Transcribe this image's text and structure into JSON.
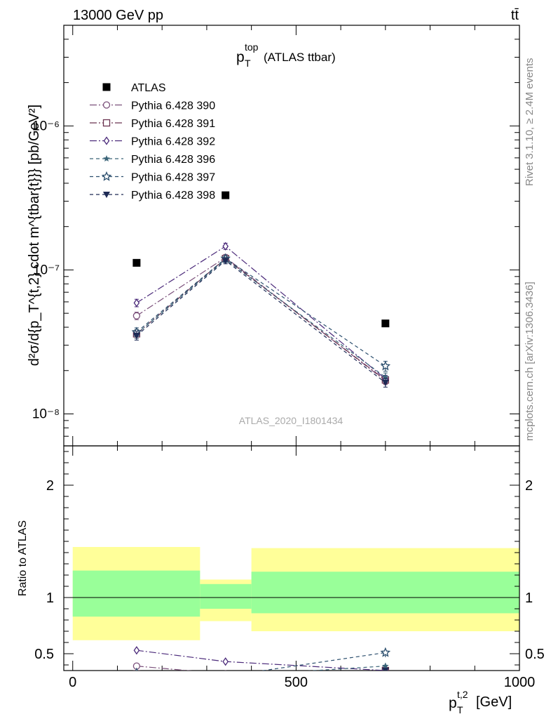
{
  "header": {
    "left": "13000 GeV pp",
    "right": "tt̄"
  },
  "side": {
    "rivet": "Rivet 3.1.10, ≥ 2.4M events",
    "mcplots": "mcplots.cern.ch [arXiv:1306.3436]"
  },
  "analysis_id": "ATLAS_2020_I1801434",
  "chart_data": [
    {
      "type": "scatter",
      "title_main": "p",
      "title_sub": "T",
      "title_sup": "top",
      "title_rest": "(ATLAS ttbar)",
      "ylabel": "d²σ/d{p_T^{t,2} cdot m^{tbar{t}}} [pb/GeV²]",
      "yscale": "log",
      "ylim": [
        6e-09,
        5e-06
      ],
      "xlim": [
        -20,
        1000
      ],
      "y_ticks": [
        "10⁻⁸",
        "10⁻⁷",
        "10⁻⁶"
      ],
      "legend_position": "top-left",
      "x": [
        143,
        342,
        700
      ],
      "xerr": [
        [
          0,
          285
        ],
        [
          285,
          400
        ],
        [
          400,
          1000
        ]
      ],
      "series": [
        {
          "name": "ATLAS",
          "marker": "square-filled",
          "color": "#000000",
          "dash": "none",
          "values": [
            1.12e-07,
            3.3e-07,
            4.25e-08
          ]
        },
        {
          "name": "Pythia 6.428 390",
          "marker": "circle-open",
          "color": "#7a4f7a",
          "dash": "10,3,2,3",
          "values": [
            4.8e-08,
            1.22e-07,
            1.7e-08
          ],
          "err": [
            0.06,
            0.05,
            0.06
          ]
        },
        {
          "name": "Pythia 6.428 391",
          "marker": "square-open",
          "color": "#6b3350",
          "dash": "10,3,2,3",
          "values": [
            3.6e-08,
            1.2e-07,
            1.72e-08
          ],
          "err": [
            0.07,
            0.05,
            0.06
          ]
        },
        {
          "name": "Pythia 6.428 392",
          "marker": "diamond-open",
          "color": "#4b2a7a",
          "dash": "10,3,2,3",
          "values": [
            5.9e-08,
            1.46e-07,
            1.75e-08
          ],
          "err": [
            0.06,
            0.05,
            0.06
          ]
        },
        {
          "name": "Pythia 6.428 396",
          "marker": "star-filled",
          "color": "#3a6478",
          "dash": "5,4",
          "values": [
            3.6e-08,
            1.18e-07,
            1.8e-08
          ],
          "err": [
            0.07,
            0.05,
            0.07
          ]
        },
        {
          "name": "Pythia 6.428 397",
          "marker": "star-open",
          "color": "#2c4f6e",
          "dash": "5,4",
          "values": [
            3.7e-08,
            1.2e-07,
            2.15e-08
          ],
          "err": [
            0.07,
            0.05,
            0.08
          ]
        },
        {
          "name": "Pythia 6.428 398",
          "marker": "triangle-down-filled",
          "color": "#1e2a55",
          "dash": "5,4",
          "values": [
            3.5e-08,
            1.16e-07,
            1.65e-08
          ],
          "err": [
            0.07,
            0.05,
            0.07
          ]
        }
      ]
    },
    {
      "type": "scatter",
      "ylabel": "Ratio to ATLAS",
      "xlabel_main": "p",
      "xlabel_sub": "T",
      "xlabel_sup": "t,2",
      "xlabel_rest": "[GeV]",
      "ylim": [
        0.35,
        2.35
      ],
      "xlim": [
        -20,
        1000
      ],
      "y_ticks": [
        "0.5",
        "1",
        "2"
      ],
      "x_ticks": [
        "0",
        "500",
        "1000"
      ],
      "bands": [
        {
          "x0": 0,
          "x1": 285,
          "yellow": [
            0.62,
            1.45
          ],
          "green": [
            0.83,
            1.24
          ]
        },
        {
          "x0": 285,
          "x1": 400,
          "yellow": [
            0.79,
            1.16
          ],
          "green": [
            0.9,
            1.12
          ]
        },
        {
          "x0": 400,
          "x1": 1000,
          "yellow": [
            0.7,
            1.44
          ],
          "green": [
            0.86,
            1.23
          ]
        }
      ],
      "series_ratio": [
        {
          "name": "Pythia 6.428 390",
          "values": [
            0.39,
            0.32,
            0.35
          ]
        },
        {
          "name": "Pythia 6.428 391",
          "values": [
            0.32,
            0.3,
            0.35
          ]
        },
        {
          "name": "Pythia 6.428 392",
          "values": [
            0.53,
            0.43,
            0.35
          ]
        },
        {
          "name": "Pythia 6.428 396",
          "values": [
            0.32,
            0.3,
            0.39
          ]
        },
        {
          "name": "Pythia 6.428 397",
          "values": [
            0.33,
            0.3,
            0.51
          ]
        },
        {
          "name": "Pythia 6.428 398",
          "values": [
            0.31,
            0.3,
            0.35
          ]
        }
      ]
    }
  ]
}
